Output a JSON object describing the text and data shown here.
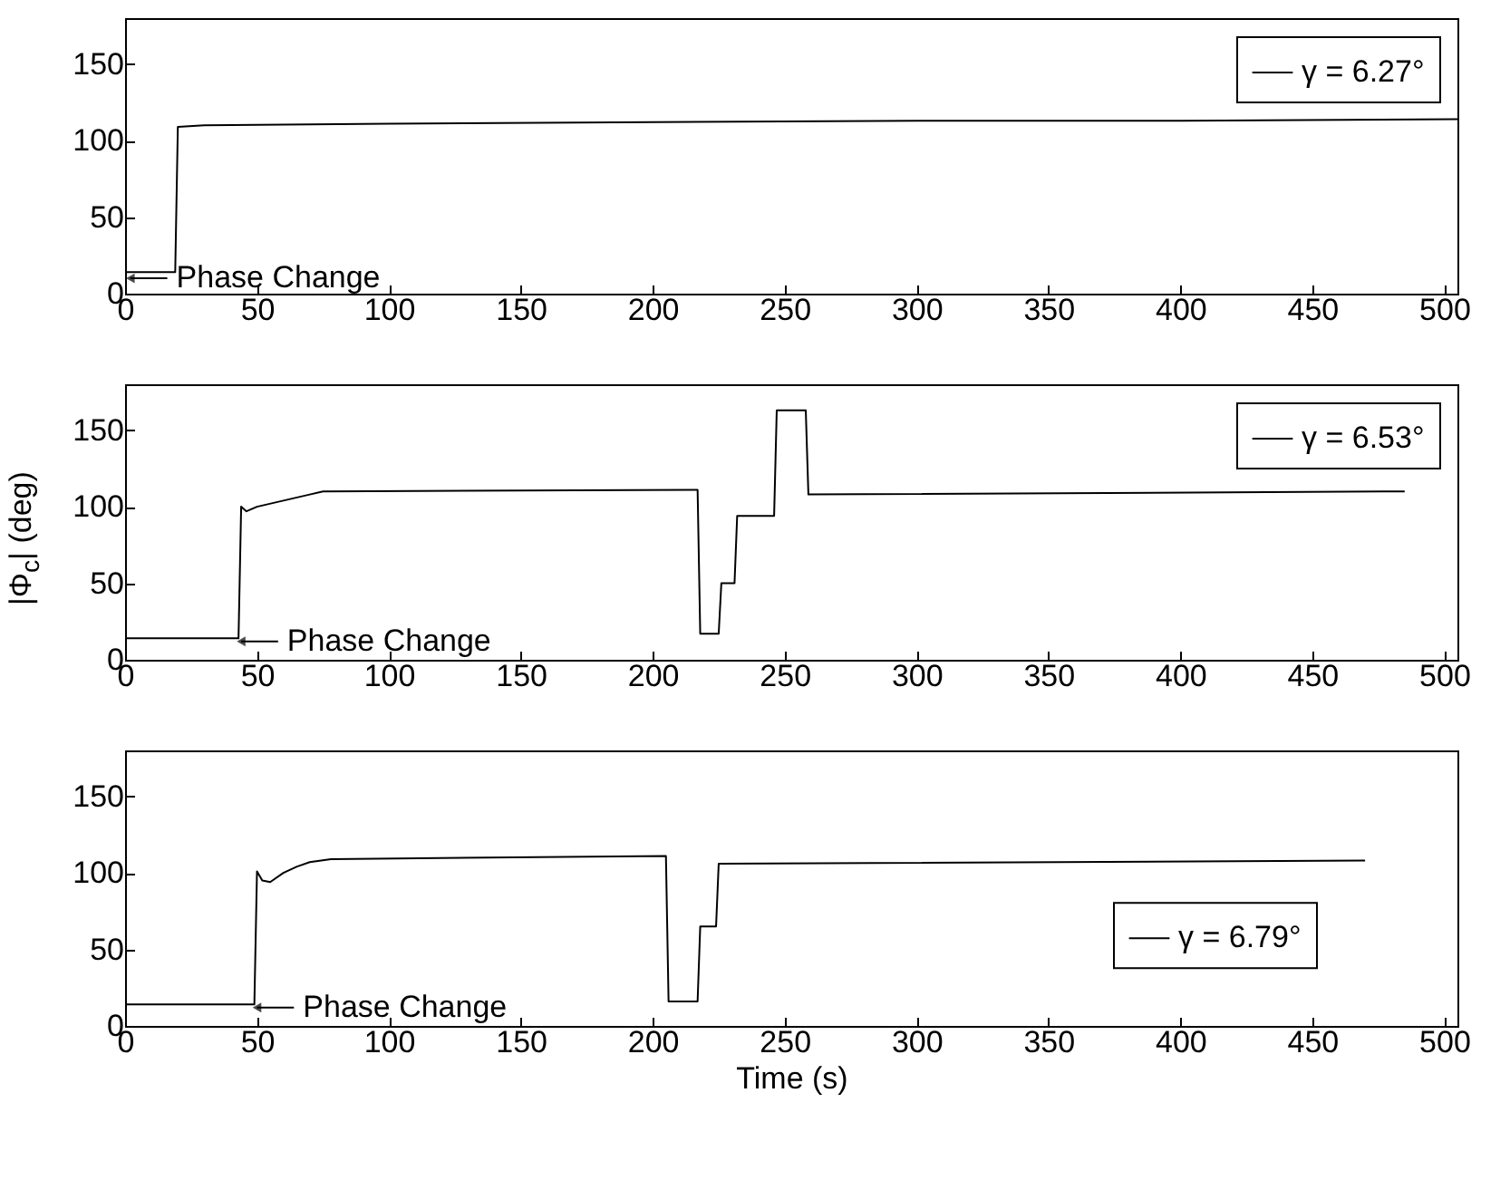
{
  "chart_data": [
    {
      "type": "line",
      "x": [
        0,
        19,
        20,
        30,
        100,
        200,
        300,
        400,
        505
      ],
      "series": [
        {
          "name": "γ = 6.27°",
          "color": "#000000",
          "values": [
            14,
            14,
            109,
            110,
            111,
            112,
            113,
            113,
            114
          ]
        }
      ],
      "xlim": [
        0,
        505
      ],
      "ylim": [
        0,
        180
      ],
      "xticks": [
        0,
        50,
        100,
        150,
        200,
        250,
        300,
        350,
        400,
        450,
        500
      ],
      "yticks": [
        0,
        50,
        100,
        150
      ],
      "annotations": [
        {
          "text": "Phase Change",
          "x": 2,
          "y": 10
        }
      ],
      "legend": "top right",
      "grid": false
    },
    {
      "type": "line",
      "x": [
        0,
        43,
        44,
        46,
        50,
        60,
        70,
        75,
        217,
        218,
        225,
        226,
        231,
        232,
        246,
        247,
        258,
        259,
        485
      ],
      "series": [
        {
          "name": "γ = 6.53°",
          "color": "#000000",
          "values": [
            14,
            14,
            100,
            97,
            100,
            104,
            108,
            110,
            111,
            17,
            17,
            50,
            50,
            94,
            94,
            163,
            163,
            108,
            110
          ]
        }
      ],
      "xlim": [
        0,
        505
      ],
      "ylim": [
        0,
        180
      ],
      "xticks": [
        0,
        50,
        100,
        150,
        200,
        250,
        300,
        350,
        400,
        450,
        500
      ],
      "yticks": [
        0,
        50,
        100,
        150
      ],
      "ylabel": "|Φ$_{c}$| (deg)",
      "annotations": [
        {
          "text": "Phase Change",
          "x": 44,
          "y": 12
        }
      ],
      "legend": "top right",
      "grid": false
    },
    {
      "type": "line",
      "x": [
        0,
        49,
        50,
        52,
        55,
        60,
        65,
        70,
        78,
        205,
        206,
        217,
        218,
        224,
        225,
        470
      ],
      "series": [
        {
          "name": "γ = 6.79°",
          "color": "#000000",
          "values": [
            14,
            14,
            101,
            95,
            94,
            100,
            104,
            107,
            109,
            111,
            16,
            16,
            65,
            65,
            106,
            108
          ]
        }
      ],
      "xlim": [
        0,
        505
      ],
      "ylim": [
        0,
        180
      ],
      "xticks": [
        0,
        50,
        100,
        150,
        200,
        250,
        300,
        350,
        400,
        450,
        500
      ],
      "yticks": [
        0,
        50,
        100,
        150
      ],
      "xlabel": "Time (s)",
      "annotations": [
        {
          "text": "Phase Change",
          "x": 50,
          "y": 12
        }
      ],
      "legend": "right",
      "grid": false
    }
  ]
}
